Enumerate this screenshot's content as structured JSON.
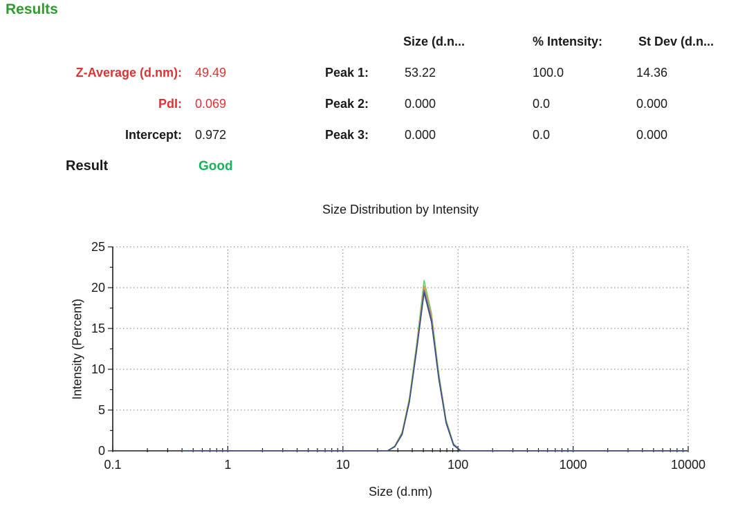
{
  "header": {
    "title": "Results"
  },
  "colors": {
    "heading_green": "#2e9b2e",
    "accent_red": "#dd3333",
    "good_green": "#17b25c",
    "text": "#1a1a1a"
  },
  "summary": {
    "rows": [
      {
        "label": "Z-Average (d.nm):",
        "value": "49.49"
      },
      {
        "label": "PdI:",
        "value": "0.069"
      },
      {
        "label": "Intercept:",
        "value": "0.972"
      }
    ],
    "result_label": "Result",
    "result_value": "Good"
  },
  "peaks_table": {
    "columns": [
      "Size (d.n...",
      "% Intensity:",
      "St Dev (d.n..."
    ],
    "rows": [
      {
        "label": "Peak 1:",
        "values": [
          "53.22",
          "100.0",
          "14.36"
        ]
      },
      {
        "label": "Peak 2:",
        "values": [
          "0.000",
          "0.0",
          "0.000"
        ]
      },
      {
        "label": "Peak 3:",
        "values": [
          "0.000",
          "0.0",
          "0.000"
        ]
      }
    ]
  },
  "chart_data": {
    "type": "line",
    "title": "Size Distribution by Intensity",
    "xlabel": "Size (d.nm)",
    "ylabel": "Intensity (Percent)",
    "x_scale": "log",
    "xlim": [
      0.1,
      10000
    ],
    "ylim": [
      0,
      25
    ],
    "x_ticks": [
      0.1,
      1,
      10,
      100,
      1000,
      10000
    ],
    "y_ticks": [
      0,
      5,
      10,
      15,
      20,
      25
    ],
    "y_minor_step": 2.5,
    "grid": "dotted",
    "legend": "none",
    "x": [
      0.4,
      18,
      21.0,
      24.4,
      28.2,
      32.7,
      37.8,
      43.8,
      50.7,
      58.8,
      68.1,
      78.8,
      91.3,
      105.7,
      10000
    ],
    "series": [
      {
        "name": "trace-1",
        "color": "#6fcf6f",
        "y": [
          0,
          0,
          0,
          0,
          0.6,
          2.3,
          6.5,
          13.2,
          20.9,
          16.9,
          9.5,
          3.8,
          0.9,
          0,
          0
        ]
      },
      {
        "name": "trace-2",
        "color": "#cf9a43",
        "y": [
          0,
          0,
          0,
          0,
          0.55,
          2.2,
          6.3,
          12.9,
          20.2,
          16.5,
          9.2,
          3.6,
          0.8,
          0,
          0
        ]
      },
      {
        "name": "trace-3",
        "color": "#7d5cbf",
        "y": [
          0,
          0,
          0,
          0,
          0.5,
          2.1,
          6.1,
          12.6,
          19.7,
          16.1,
          9.0,
          3.5,
          0.8,
          0,
          0
        ]
      },
      {
        "name": "trace-4",
        "color": "#35517d",
        "y": [
          0,
          0,
          0,
          0,
          0.5,
          2.0,
          6.0,
          12.4,
          19.4,
          15.8,
          8.8,
          3.4,
          0.7,
          0,
          0
        ]
      }
    ]
  }
}
